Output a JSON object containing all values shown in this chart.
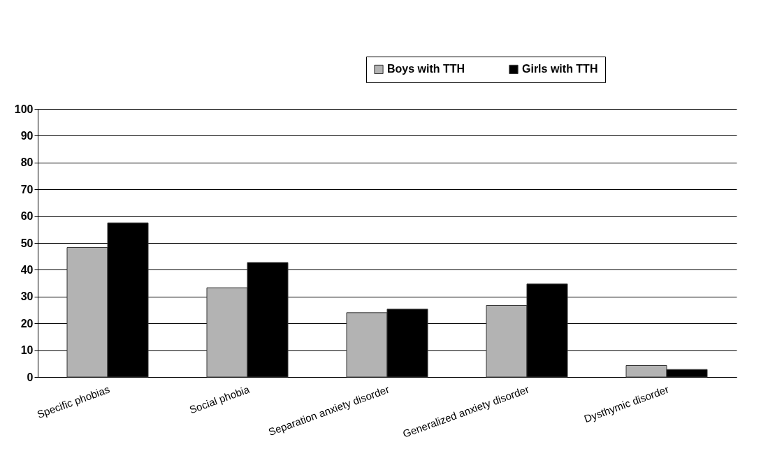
{
  "chart_data": {
    "type": "bar",
    "categories": [
      "Specific phobias",
      "Social phobia",
      "Separation anxiety disorder",
      "Generalized anxiety disorder",
      "Dysthymic disorder"
    ],
    "series": [
      {
        "name": "Boys with TTH",
        "color": "#b3b3b3",
        "values": [
          48.3,
          33.3,
          24,
          26.7,
          4.3
        ]
      },
      {
        "name": "Girls with TTH",
        "color": "#000000",
        "values": [
          57.5,
          42.7,
          25.3,
          34.7,
          2.8
        ]
      }
    ],
    "ylim": [
      0,
      100
    ],
    "yticks": [
      0,
      10,
      20,
      30,
      40,
      50,
      60,
      70,
      80,
      90,
      100
    ],
    "grid": "y",
    "legend": "top right"
  }
}
